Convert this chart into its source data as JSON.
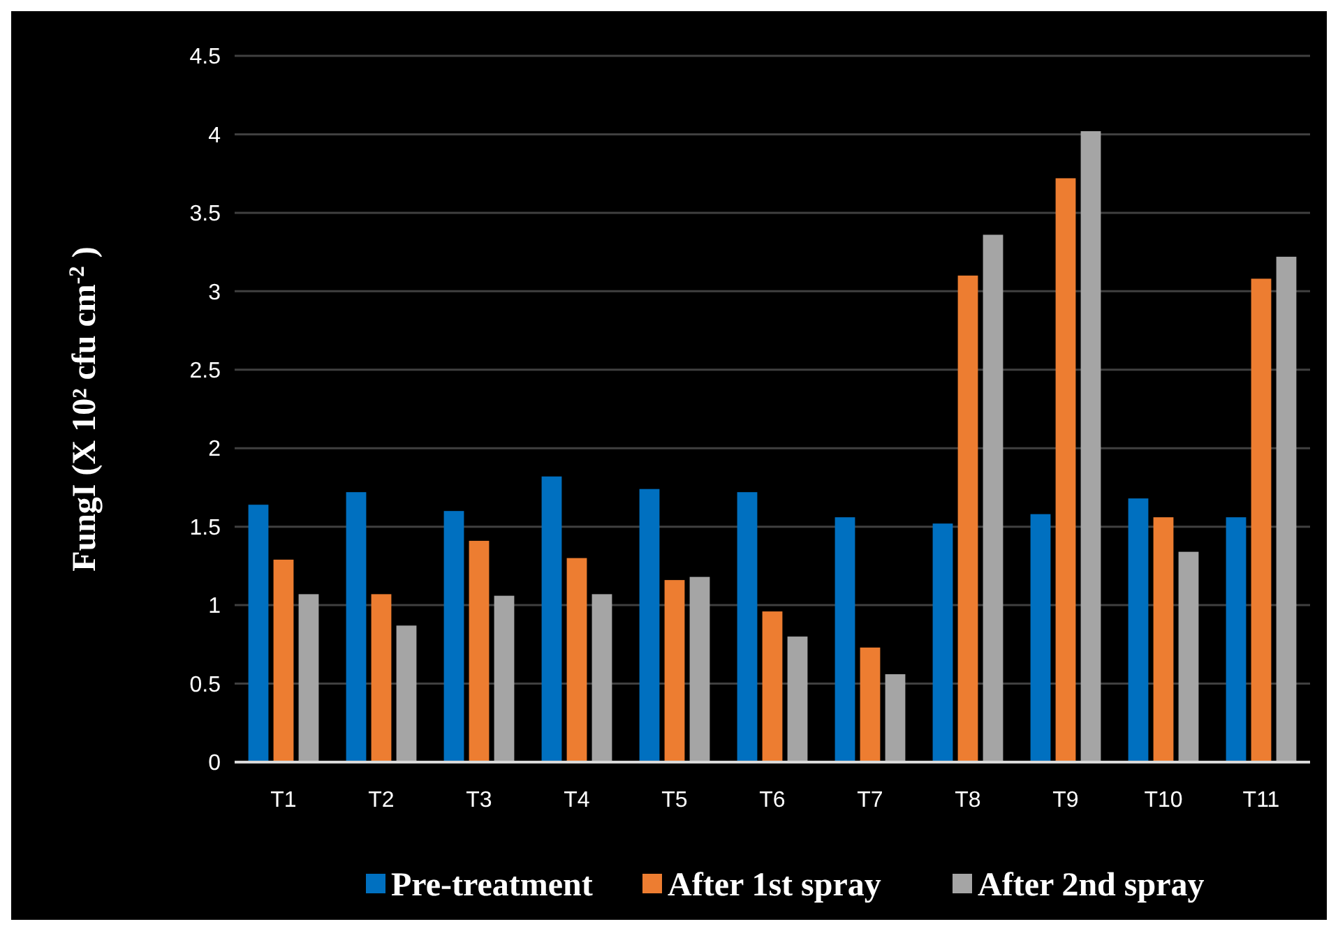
{
  "chart_data": {
    "type": "bar",
    "ylabel": "FungI (X 10² cfu cm$^{-2}$ )",
    "categories": [
      "T1",
      "T2",
      "T3",
      "T4",
      "T5",
      "T6",
      "T7",
      "T8",
      "T9",
      "T10",
      "T11"
    ],
    "series": [
      {
        "name": "Pre-treatment",
        "color": "#0070c0",
        "values": [
          1.64,
          1.72,
          1.6,
          1.82,
          1.74,
          1.72,
          1.56,
          1.52,
          1.58,
          1.68,
          1.56
        ]
      },
      {
        "name": "After 1st spray",
        "color": "#ed7d31",
        "values": [
          1.29,
          1.07,
          1.41,
          1.3,
          1.16,
          0.96,
          0.73,
          3.1,
          3.72,
          1.56,
          3.08
        ]
      },
      {
        "name": "After 2nd spray",
        "color": "#a5a5a5",
        "values": [
          1.07,
          0.87,
          1.06,
          1.07,
          1.18,
          0.8,
          0.56,
          3.36,
          4.02,
          1.34,
          3.22
        ]
      }
    ],
    "ylim": [
      0,
      4.5
    ],
    "yticks": [
      0,
      0.5,
      1,
      1.5,
      2,
      2.5,
      3,
      3.5,
      4,
      4.5
    ],
    "grid": "y",
    "legend": "bottom"
  }
}
